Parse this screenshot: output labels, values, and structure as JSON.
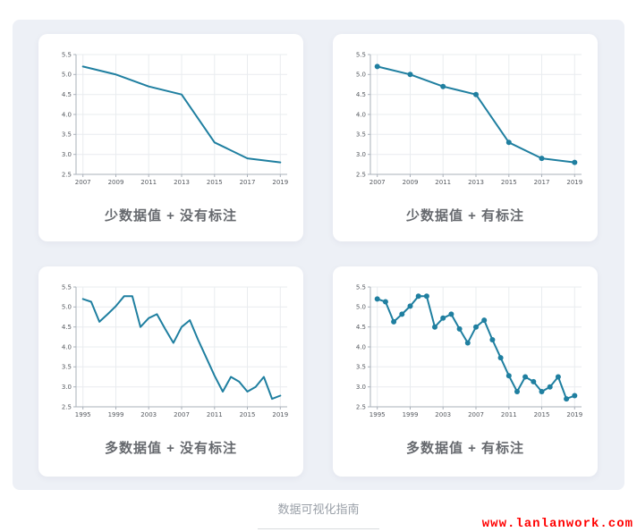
{
  "theme": {
    "page_bg": "#ffffff",
    "panel_bg": "#edf0f6",
    "card_bg": "#ffffff",
    "accent": "#1f7fa0",
    "grid_color": "#e9ecef",
    "axis_color": "#aab1ba",
    "tick_text_color": "#55595f",
    "title_color": "#66696e",
    "watermark_color": "#ff0000",
    "caption_color": "#9aa0a8"
  },
  "footer": {
    "caption": "数据可视化指南"
  },
  "watermark": {
    "text": "www.lanlanwork.com"
  },
  "chart_data": [
    {
      "type": "line",
      "title": "少数据值 + 没有标注",
      "x": [
        2007,
        2009,
        2011,
        2013,
        2015,
        2017,
        2019
      ],
      "values": [
        5.2,
        5.0,
        4.7,
        4.5,
        3.3,
        2.9,
        2.8
      ],
      "x_ticks": [
        2007,
        2009,
        2011,
        2013,
        2015,
        2017,
        2019
      ],
      "y_ticks": [
        2.5,
        3.0,
        3.5,
        4.0,
        4.5,
        5.0,
        5.5
      ],
      "ylim": [
        2.5,
        5.5
      ],
      "markers": false,
      "grid": true,
      "legend": false,
      "xlabel": "",
      "ylabel": "",
      "line_color": "#1f7fa0"
    },
    {
      "type": "line",
      "title": "少数据值 + 有标注",
      "x": [
        2007,
        2009,
        2011,
        2013,
        2015,
        2017,
        2019
      ],
      "values": [
        5.2,
        5.0,
        4.7,
        4.5,
        3.3,
        2.9,
        2.8
      ],
      "x_ticks": [
        2007,
        2009,
        2011,
        2013,
        2015,
        2017,
        2019
      ],
      "y_ticks": [
        2.5,
        3.0,
        3.5,
        4.0,
        4.5,
        5.0,
        5.5
      ],
      "ylim": [
        2.5,
        5.5
      ],
      "markers": true,
      "grid": true,
      "legend": false,
      "xlabel": "",
      "ylabel": "",
      "line_color": "#1f7fa0"
    },
    {
      "type": "line",
      "title": "多数据值 + 没有标注",
      "x": [
        1995,
        1996,
        1997,
        1998,
        1999,
        2000,
        2001,
        2002,
        2003,
        2004,
        2005,
        2006,
        2007,
        2008,
        2009,
        2010,
        2011,
        2012,
        2013,
        2014,
        2015,
        2016,
        2017,
        2018,
        2019
      ],
      "values": [
        5.2,
        5.13,
        4.63,
        4.82,
        5.02,
        5.27,
        5.27,
        4.5,
        4.72,
        4.82,
        4.45,
        4.1,
        4.5,
        4.67,
        4.18,
        3.73,
        3.28,
        2.88,
        3.25,
        3.13,
        2.88,
        3.0,
        3.25,
        2.7,
        2.78
      ],
      "x_ticks": [
        1995,
        1999,
        2003,
        2007,
        2011,
        2015,
        2019
      ],
      "y_ticks": [
        2.5,
        3.0,
        3.5,
        4.0,
        4.5,
        5.0,
        5.5
      ],
      "ylim": [
        2.5,
        5.5
      ],
      "markers": false,
      "grid": true,
      "legend": false,
      "xlabel": "",
      "ylabel": "",
      "line_color": "#1f7fa0"
    },
    {
      "type": "line",
      "title": "多数据值 + 有标注",
      "x": [
        1995,
        1996,
        1997,
        1998,
        1999,
        2000,
        2001,
        2002,
        2003,
        2004,
        2005,
        2006,
        2007,
        2008,
        2009,
        2010,
        2011,
        2012,
        2013,
        2014,
        2015,
        2016,
        2017,
        2018,
        2019
      ],
      "values": [
        5.2,
        5.13,
        4.63,
        4.82,
        5.02,
        5.27,
        5.27,
        4.5,
        4.72,
        4.82,
        4.45,
        4.1,
        4.5,
        4.67,
        4.18,
        3.73,
        3.28,
        2.88,
        3.25,
        3.13,
        2.88,
        3.0,
        3.25,
        2.7,
        2.78
      ],
      "x_ticks": [
        1995,
        1999,
        2003,
        2007,
        2011,
        2015,
        2019
      ],
      "y_ticks": [
        2.5,
        3.0,
        3.5,
        4.0,
        4.5,
        5.0,
        5.5
      ],
      "ylim": [
        2.5,
        5.5
      ],
      "markers": true,
      "grid": true,
      "legend": false,
      "xlabel": "",
      "ylabel": "",
      "line_color": "#1f7fa0"
    }
  ]
}
